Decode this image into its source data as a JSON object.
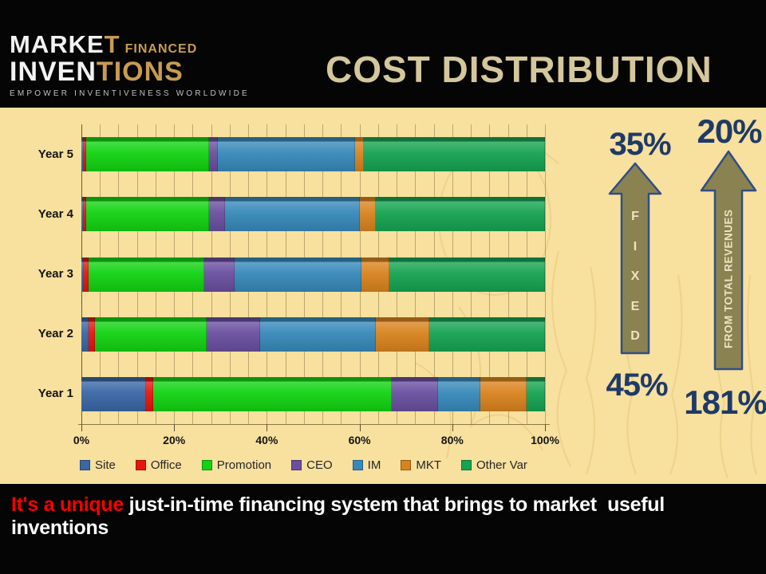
{
  "header": {
    "logo": {
      "market_white": "MARKE",
      "market_gold": "T",
      "financed": "FINANCED",
      "inventions_white": "INVEN",
      "inventions_gold": "TIONS",
      "tagline": "EMPOWER INVENTIVENESS WORLDWIDE"
    },
    "title": "COST DISTRIBUTION"
  },
  "chart_data": {
    "type": "bar",
    "orientation": "horizontal",
    "stacked": true,
    "categories": [
      "Year 5",
      "Year 4",
      "Year 3",
      "Year 2",
      "Year 1"
    ],
    "series": [
      {
        "name": "Site",
        "color": "#3a67a5",
        "values": [
          0.5,
          0.5,
          0.5,
          1.5,
          14
        ]
      },
      {
        "name": "Office",
        "color": "#e8150c",
        "values": [
          0.5,
          0.5,
          1.0,
          1.5,
          1.5
        ]
      },
      {
        "name": "Promotion",
        "color": "#12d312",
        "values": [
          26.5,
          26.5,
          25.0,
          24.0,
          51.5
        ]
      },
      {
        "name": "CEO",
        "color": "#6a4fa0",
        "values": [
          2.0,
          3.5,
          6.5,
          11.5,
          10.0
        ]
      },
      {
        "name": "IM",
        "color": "#3789ba",
        "values": [
          29.5,
          29.0,
          27.5,
          25.0,
          9.0
        ]
      },
      {
        "name": "MKT",
        "color": "#d9831e",
        "values": [
          2.0,
          3.5,
          6.0,
          11.5,
          10.0
        ]
      },
      {
        "name": "Other Var",
        "color": "#16a352",
        "values": [
          39.0,
          36.5,
          33.5,
          25.0,
          4.0
        ]
      }
    ],
    "x_ticks": [
      "0%",
      "20%",
      "40%",
      "60%",
      "80%",
      "100%"
    ],
    "xlim": [
      0,
      100
    ],
    "minor_grid_step": 4,
    "grid": true,
    "legend_position": "bottom"
  },
  "annotations": {
    "number_color": "#1e3a68",
    "arrow_fill": "#8b8251",
    "arrow_border": "#2e4e87",
    "fixed": {
      "top_label": "35%",
      "bottom_label": "45%",
      "word": "FIXED"
    },
    "revenues": {
      "top_label": "20%",
      "bottom_label": "181%",
      "word": "FROM TOTAL REVENUES"
    }
  },
  "footer": {
    "highlight": "It's a unique",
    "rest": " just-in-time financing system that brings to market  useful inventions"
  }
}
